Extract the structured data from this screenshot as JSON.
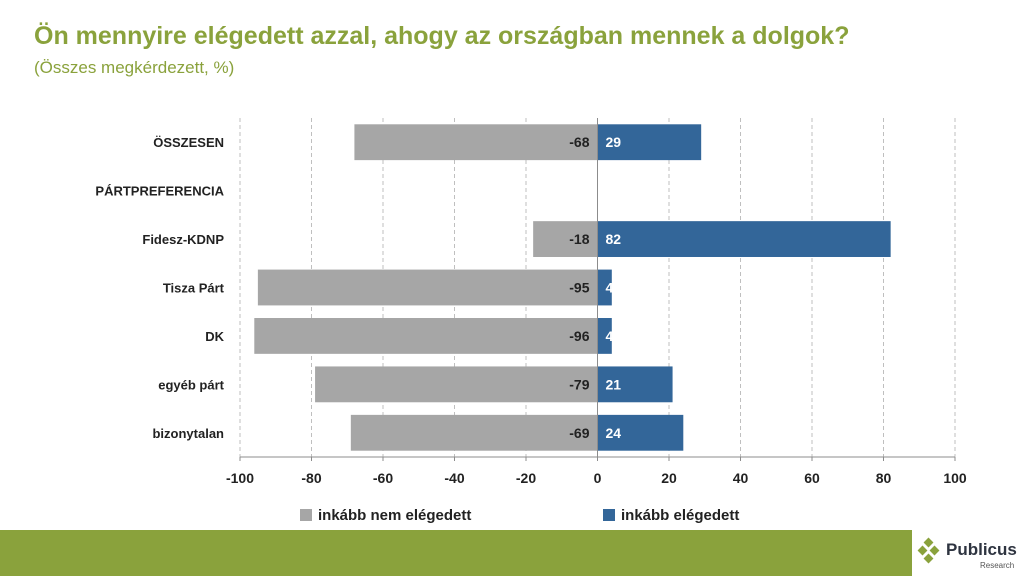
{
  "title": "Ön mennyire elégedett azzal, ahogy az országban mennek a dolgok?",
  "subtitle": "(Összes megkérdezett, %)",
  "brand": {
    "name": "Publicus",
    "sub": "Research"
  },
  "colors": {
    "accent": "#8aa23c",
    "negative": "#a6a6a6",
    "positive": "#336699"
  },
  "chart_data": {
    "type": "bar",
    "orientation": "horizontal-diverging",
    "categories": [
      "ÖSSZESEN",
      "PÁRTPREFERENCIA",
      "Fidesz-KDNP",
      "Tisza Párt",
      "DK",
      "egyéb párt",
      "bizonytalan"
    ],
    "series": [
      {
        "name": "inkább nem elégedett",
        "color": "#a6a6a6",
        "values": [
          -68,
          null,
          -18,
          -95,
          -96,
          -79,
          -69
        ]
      },
      {
        "name": "inkább elégedett",
        "color": "#336699",
        "values": [
          29,
          null,
          82,
          4,
          4,
          21,
          24
        ]
      }
    ],
    "xlim": [
      -100,
      100
    ],
    "xticks": [
      -100,
      -80,
      -60,
      -40,
      -20,
      0,
      20,
      40,
      60,
      80,
      100
    ],
    "grid": "vertical dashed",
    "legend": "bottom"
  }
}
